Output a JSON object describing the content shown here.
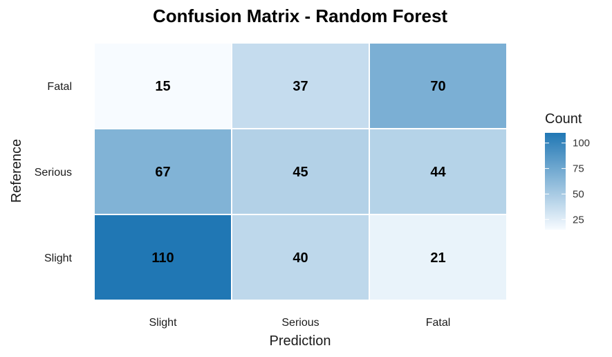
{
  "chart_data": {
    "type": "heatmap",
    "title": "Confusion Matrix - Random Forest",
    "xlabel": "Prediction",
    "ylabel": "Reference",
    "x_categories": [
      "Slight",
      "Serious",
      "Fatal"
    ],
    "y_categories": [
      "Fatal",
      "Serious",
      "Slight"
    ],
    "values": [
      [
        15,
        37,
        70
      ],
      [
        67,
        45,
        44
      ],
      [
        110,
        40,
        21
      ]
    ],
    "legend": {
      "title": "Count",
      "ticks": [
        100,
        75,
        50,
        25
      ],
      "range": [
        15,
        110
      ],
      "colors": {
        "low": "#F7FBFF",
        "high": "#2077B4"
      },
      "placement": "right"
    }
  }
}
